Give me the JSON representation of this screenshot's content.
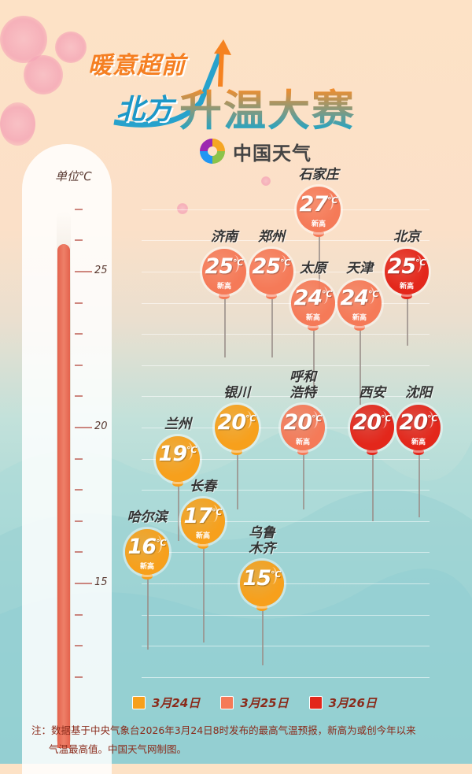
{
  "title": {
    "line1": "暖意超前",
    "line2a": "北方",
    "line2b": "升温大赛"
  },
  "logo": {
    "text": "中国天气",
    "icon": "china-weather-swirl-logo"
  },
  "colors": {
    "2026-03-24": "#f7a01c",
    "2026-03-25": "#f57a58",
    "2026-03-26": "#e3271b",
    "thermo_fill": "#e8684f"
  },
  "chart_data": {
    "type": "scatter",
    "unit_label": "单位℃",
    "y_ticks": [
      25,
      20,
      15
    ],
    "ylim": [
      12,
      27
    ],
    "grid": true,
    "legend_placement": "bottom",
    "legend": [
      {
        "label": "3月24日",
        "color": "#f7a01c"
      },
      {
        "label": "3月25日",
        "color": "#f57a58"
      },
      {
        "label": "3月26日",
        "color": "#e3271b"
      }
    ],
    "new_high_label": "新高",
    "unit": "℃",
    "points": [
      {
        "city": [
          "石家庄"
        ],
        "value": 27,
        "date": "3月25日",
        "new_high": true
      },
      {
        "city": [
          "济南"
        ],
        "value": 25,
        "date": "3月25日",
        "new_high": true
      },
      {
        "city": [
          "郑州"
        ],
        "value": 25,
        "date": "3月25日",
        "new_high": false
      },
      {
        "city": [
          "太原"
        ],
        "value": 24,
        "date": "3月25日",
        "new_high": true
      },
      {
        "city": [
          "天津"
        ],
        "value": 24,
        "date": "3月25日",
        "new_high": true
      },
      {
        "city": [
          "北京"
        ],
        "value": 25,
        "date": "3月26日",
        "new_high": true
      },
      {
        "city": [
          "兰州"
        ],
        "value": 19,
        "date": "3月24日",
        "new_high": false
      },
      {
        "city": [
          "银川"
        ],
        "value": 20,
        "date": "3月24日",
        "new_high": false
      },
      {
        "city": [
          "呼和",
          "浩特"
        ],
        "value": 20,
        "date": "3月25日",
        "new_high": true
      },
      {
        "city": [
          "西安"
        ],
        "value": 20,
        "date": "3月26日",
        "new_high": false
      },
      {
        "city": [
          "沈阳"
        ],
        "value": 20,
        "date": "3月26日",
        "new_high": true
      },
      {
        "city": [
          "哈尔滨"
        ],
        "value": 16,
        "date": "3月24日",
        "new_high": true
      },
      {
        "city": [
          "长春"
        ],
        "value": 17,
        "date": "3月24日",
        "new_high": true
      },
      {
        "city": [
          "乌鲁",
          "木齐"
        ],
        "value": 15,
        "date": "3月24日",
        "new_high": false
      }
    ]
  },
  "note": {
    "line1": "注：数据基于中央气象台2026年3月24日8时发布的最高气温预报，新高为或创今年以来",
    "line2": "气温最高值。中国天气网制图。"
  }
}
